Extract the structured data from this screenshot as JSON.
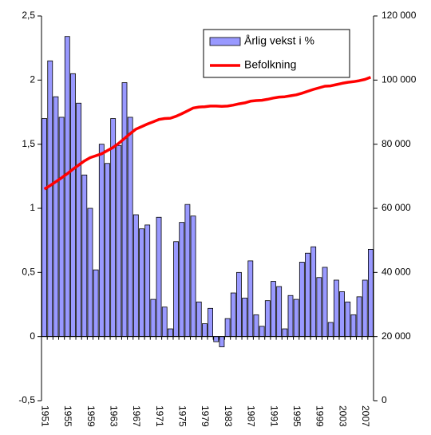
{
  "chart_data": {
    "type": "bar_line",
    "categories": [
      "1951",
      null,
      null,
      null,
      "1955",
      null,
      null,
      null,
      "1959",
      null,
      null,
      null,
      "1963",
      null,
      null,
      null,
      "1967",
      null,
      null,
      null,
      "1971",
      null,
      null,
      null,
      "1975",
      null,
      null,
      null,
      "1979",
      null,
      null,
      null,
      "1983",
      null,
      null,
      null,
      "1987",
      null,
      null,
      null,
      "1991",
      null,
      null,
      null,
      "1995",
      null,
      null,
      null,
      "1999",
      null,
      null,
      null,
      "2003",
      null,
      null,
      null,
      "2007",
      null
    ],
    "series": [
      {
        "name": "Årlig vekst i %",
        "type": "bar",
        "color": "#9999ff",
        "axis": "y",
        "values": [
          1.7,
          2.15,
          1.87,
          1.71,
          2.34,
          2.05,
          1.82,
          1.26,
          1.0,
          0.52,
          1.5,
          1.35,
          1.7,
          1.49,
          1.98,
          1.71,
          0.95,
          0.84,
          0.87,
          0.29,
          0.93,
          0.23,
          0.06,
          0.74,
          0.89,
          1.03,
          0.94,
          0.27,
          0.1,
          0.22,
          -0.04,
          -0.08,
          0.14,
          0.34,
          0.5,
          0.3,
          0.59,
          0.17,
          0.08,
          0.28,
          0.43,
          0.39,
          0.06,
          0.32,
          0.29,
          0.58,
          0.65,
          0.7,
          0.46,
          0.54,
          0.11,
          0.44,
          0.35,
          0.27,
          0.17,
          0.31,
          0.44,
          0.68
        ]
      },
      {
        "name": "Befolkning",
        "type": "line",
        "color": "#ff0000",
        "axis": "y2",
        "values": [
          66000,
          67100,
          68300,
          69500,
          70800,
          72200,
          73500,
          74800,
          75800,
          76400,
          77000,
          78000,
          79000,
          80300,
          81800,
          83300,
          84700,
          85500,
          86300,
          87000,
          87700,
          88000,
          88100,
          88700,
          89500,
          90400,
          91300,
          91600,
          91700,
          91900,
          91900,
          91800,
          91900,
          92200,
          92600,
          92900,
          93400,
          93600,
          93700,
          94000,
          94400,
          94700,
          94800,
          95100,
          95400,
          95900,
          96500,
          97100,
          97600,
          98100,
          98200,
          98600,
          99000,
          99300,
          99500,
          99800,
          100200,
          100900
        ]
      }
    ],
    "ylim": [
      -0.5,
      2.5
    ],
    "yticks": [
      {
        "value": -0.5,
        "label": "-0,5"
      },
      0,
      {
        "value": 0.5,
        "label": "0,5"
      },
      1,
      {
        "value": 1.5,
        "label": "1,5"
      },
      2,
      {
        "value": 2.5,
        "label": "2,5"
      }
    ],
    "y2lim": [
      0,
      120000
    ],
    "y2ticks": [
      0,
      {
        "value": 20000,
        "label": "20 000"
      },
      {
        "value": 40000,
        "label": "40 000"
      },
      {
        "value": 60000,
        "label": "60 000"
      },
      {
        "value": 80000,
        "label": "80 000"
      },
      {
        "value": 100000,
        "label": "100 000"
      },
      {
        "value": 120000,
        "label": "120 000"
      }
    ],
    "legend": "top-right"
  }
}
